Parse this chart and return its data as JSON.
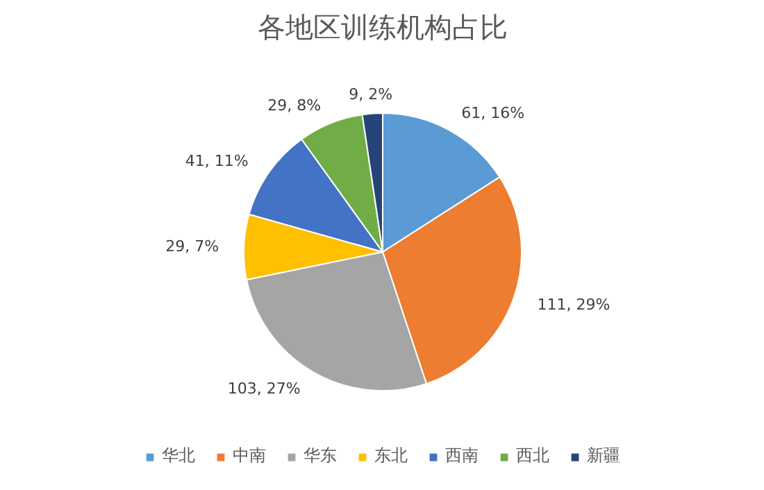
{
  "chart_data": {
    "type": "pie",
    "title": "各地区训练机构占比",
    "categories": [
      "华北",
      "中南",
      "华东",
      "东北",
      "西南",
      "西北",
      "新疆"
    ],
    "values": [
      61,
      111,
      103,
      29,
      41,
      29,
      9
    ],
    "colors": [
      "#5b9bd5",
      "#ed7d31",
      "#a5a5a5",
      "#ffc000",
      "#4472c4",
      "#70ad47",
      "#264478"
    ],
    "value_labels": [
      "61, 16%",
      "111, 29%",
      "103, 27%",
      "29, 7%",
      "41, 11%",
      "29, 8%",
      "9, 2%"
    ],
    "legend": "bottom"
  }
}
